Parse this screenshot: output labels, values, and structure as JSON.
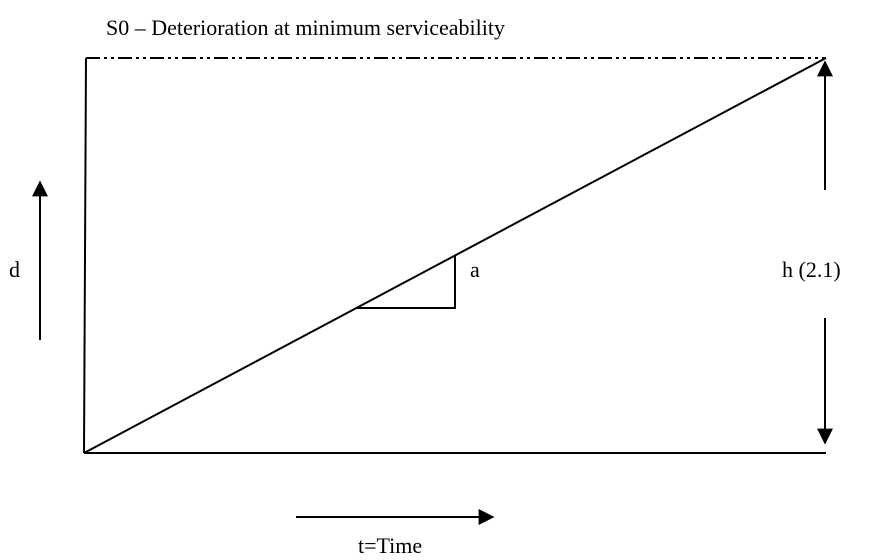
{
  "title": "S0 – Deterioration at minimum serviceability",
  "labels": {
    "y_axis": "d",
    "x_axis": "t=Time",
    "slope": "a",
    "height": "h (2.1)"
  }
}
